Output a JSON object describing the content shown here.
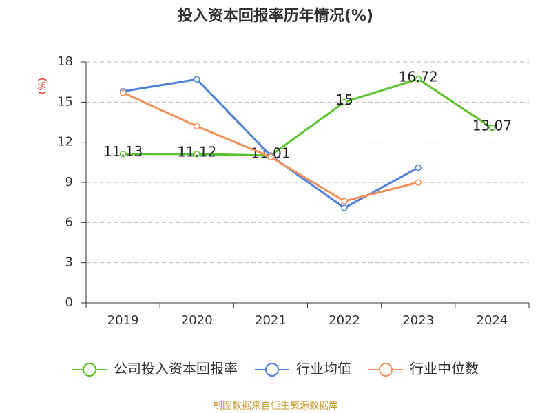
{
  "chart_data": {
    "type": "line",
    "title": "投入资本回报率历年情况(%)",
    "y_label": "(%)",
    "categories": [
      "2019",
      "2020",
      "2021",
      "2022",
      "2023",
      "2024"
    ],
    "series": [
      {
        "name": "公司投入资本回报率",
        "color": "#5ac22a",
        "values": [
          11.13,
          11.12,
          11.01,
          15,
          16.72,
          13.07
        ],
        "show_labels": true
      },
      {
        "name": "行业均值",
        "color": "#4f7fdc",
        "values": [
          15.8,
          16.7,
          11.0,
          7.1,
          10.1,
          null
        ],
        "show_labels": false
      },
      {
        "name": "行业中位数",
        "color": "#f5905a",
        "values": [
          15.7,
          13.2,
          10.9,
          7.6,
          9.0,
          null
        ],
        "show_labels": false
      }
    ],
    "ylim": [
      0,
      18
    ],
    "yticks": [
      0,
      3,
      6,
      9,
      12,
      15,
      18
    ],
    "grid": true,
    "legend": "bottom",
    "source": "制图数据来自恒生聚源数据库"
  }
}
